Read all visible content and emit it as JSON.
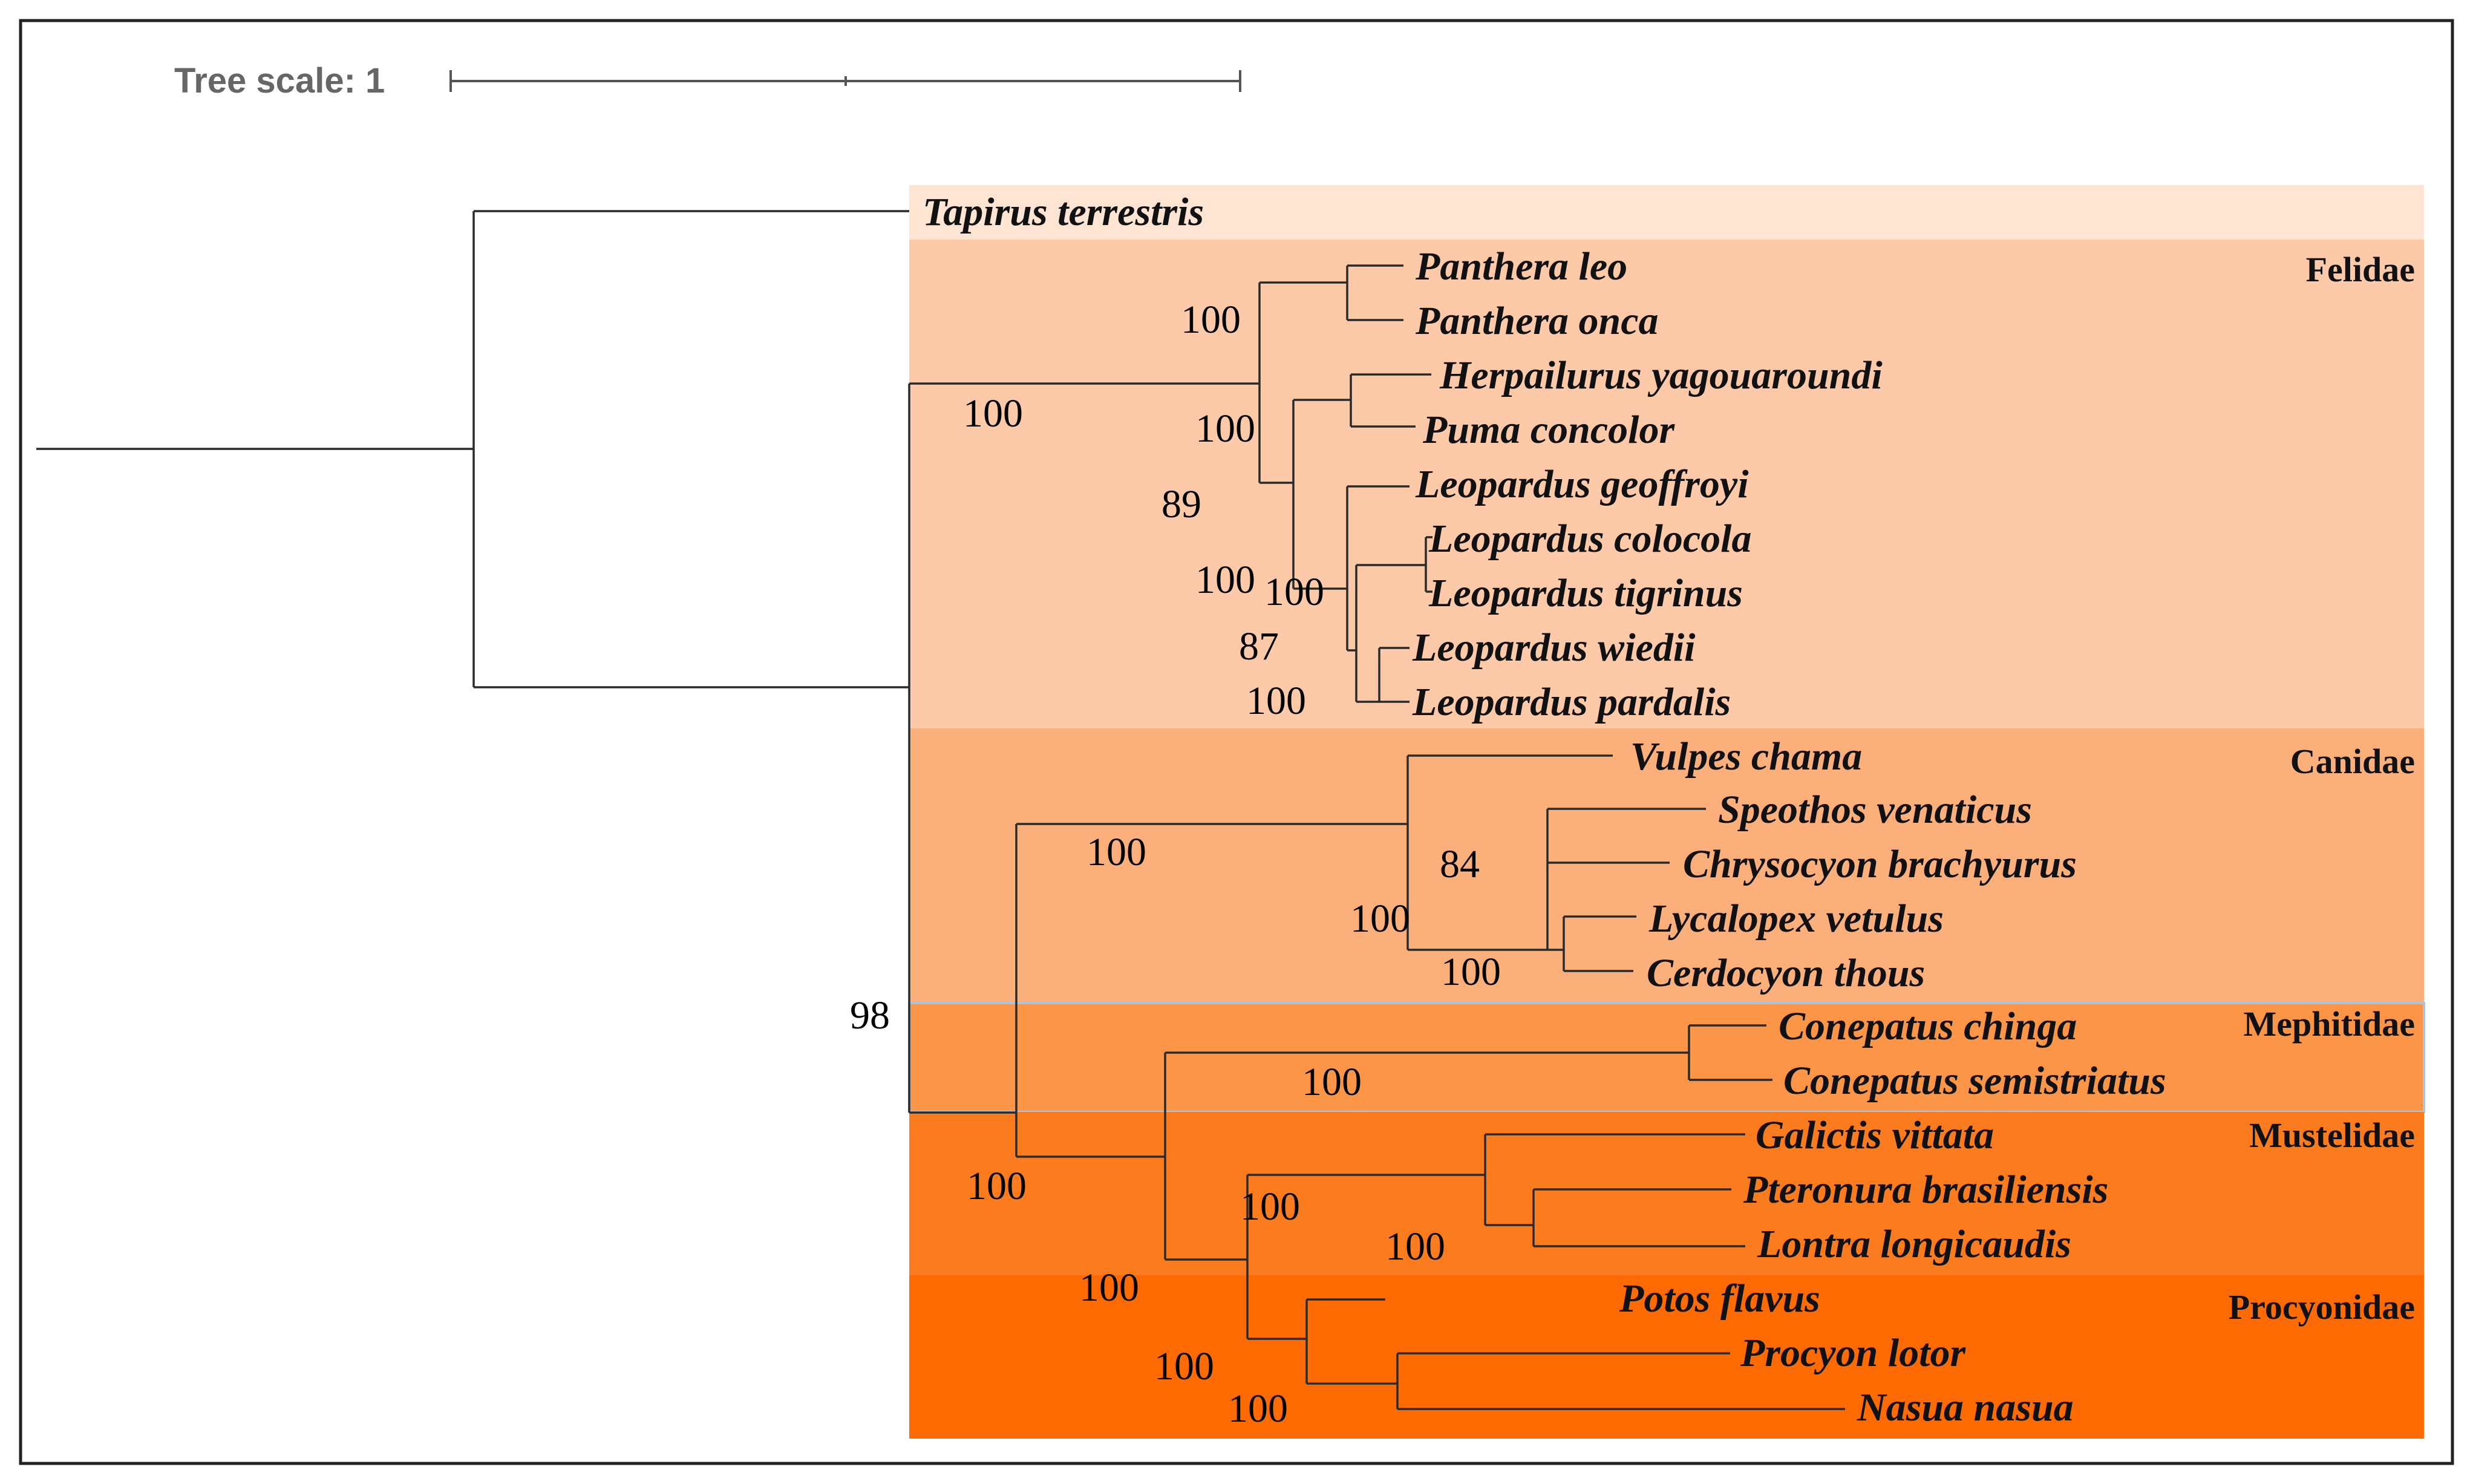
{
  "scale": {
    "label": "Tree scale: 1"
  },
  "groups": [
    {
      "name": "",
      "color": "#fde4d3"
    },
    {
      "name": "Felidae",
      "color": "#fccaa9"
    },
    {
      "name": "Canidae",
      "color": "#fbb07c"
    },
    {
      "name": "Mephitidae",
      "color": "#fb9547",
      "border": "#a9c4dd"
    },
    {
      "name": "Mustelidae",
      "color": "#fb7c1e"
    },
    {
      "name": "Procyonidae",
      "color": "#fd6b02"
    }
  ],
  "taxa": [
    "Tapirus terrestris",
    "Panthera leo",
    "Panthera onca",
    "Herpailurus yagouaroundi",
    "Puma concolor",
    "Leopardus geoffroyi",
    "Leopardus colocola",
    "Leopardus tigrinus",
    "Leopardus wiedii",
    "Leopardus pardalis",
    "Vulpes chama",
    "Speothos venaticus",
    "Chrysocyon brachyurus",
    "Lycalopex vetulus",
    "Cerdocyon thous",
    "Conepatus chinga",
    "Conepatus semistriatus",
    "Galictis vittata",
    "Pteronura brasiliensis",
    "Lontra longicaudis",
    "Potos flavus",
    "Procyon lotor",
    "Nasua nasua"
  ],
  "support_values": [
    "100",
    "100",
    "100",
    "89",
    "100",
    "100",
    "87",
    "100",
    "100",
    "84",
    "100",
    "100",
    "98",
    "100",
    "100",
    "100",
    "100",
    "100",
    "100",
    "100"
  ]
}
